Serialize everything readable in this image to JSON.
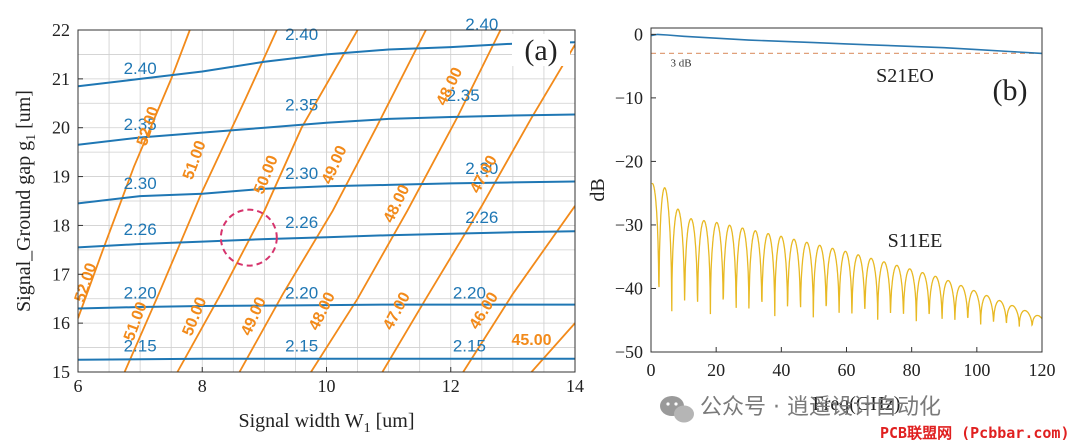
{
  "chart_data": [
    {
      "type": "contour",
      "panel_label": "(a)",
      "xlabel": "Signal width W",
      "xlabel_sub": "1",
      "xlabel_unit": " [um]",
      "ylabel": "Signal_Ground gap g",
      "ylabel_sub": "1",
      "ylabel_unit": " [um]",
      "xlim": [
        6,
        14
      ],
      "ylim": [
        15,
        22
      ],
      "xticks": [
        6,
        8,
        10,
        12,
        14
      ],
      "yticks": [
        15,
        16,
        17,
        18,
        19,
        20,
        21,
        22
      ],
      "grid": true,
      "colors": {
        "blue": "#1f77b4",
        "orange": "#f28a1a",
        "highlight": "#d6336c"
      },
      "blue_contours": [
        {
          "label": "2.40",
          "points": [
            [
              6,
              20.85
            ],
            [
              7,
              21.0
            ],
            [
              8,
              21.15
            ],
            [
              9,
              21.35
            ],
            [
              10,
              21.5
            ],
            [
              11,
              21.6
            ],
            [
              12,
              21.65
            ],
            [
              13,
              21.72
            ],
            [
              14,
              21.75
            ]
          ],
          "label_positions": [
            [
              7.0,
              21.1
            ],
            [
              9.6,
              21.8
            ],
            [
              12.5,
              22.0
            ]
          ]
        },
        {
          "label": "2.35",
          "points": [
            [
              6,
              19.65
            ],
            [
              7,
              19.8
            ],
            [
              8,
              19.9
            ],
            [
              9,
              20.0
            ],
            [
              10,
              20.1
            ],
            [
              11,
              20.18
            ],
            [
              12,
              20.22
            ],
            [
              13,
              20.25
            ],
            [
              14,
              20.27
            ]
          ],
          "label_positions": [
            [
              7.0,
              19.95
            ],
            [
              9.6,
              20.35
            ],
            [
              12.2,
              20.55
            ]
          ]
        },
        {
          "label": "2.30",
          "points": [
            [
              6,
              18.45
            ],
            [
              7,
              18.6
            ],
            [
              8,
              18.65
            ],
            [
              9,
              18.75
            ],
            [
              10,
              18.8
            ],
            [
              11,
              18.83
            ],
            [
              12,
              18.86
            ],
            [
              13,
              18.88
            ],
            [
              14,
              18.9
            ]
          ],
          "label_positions": [
            [
              7.0,
              18.75
            ],
            [
              9.6,
              18.95
            ],
            [
              12.5,
              19.05
            ]
          ]
        },
        {
          "label": "2.26",
          "points": [
            [
              6,
              17.55
            ],
            [
              7,
              17.62
            ],
            [
              8,
              17.67
            ],
            [
              9,
              17.72
            ],
            [
              10,
              17.76
            ],
            [
              11,
              17.8
            ],
            [
              12,
              17.83
            ],
            [
              13,
              17.86
            ],
            [
              14,
              17.88
            ]
          ],
          "label_positions": [
            [
              7.0,
              17.8
            ],
            [
              9.6,
              17.95
            ],
            [
              12.5,
              18.05
            ]
          ]
        },
        {
          "label": "2.20",
          "points": [
            [
              6,
              16.3
            ],
            [
              7,
              16.33
            ],
            [
              8,
              16.35
            ],
            [
              9,
              16.36
            ],
            [
              10,
              16.37
            ],
            [
              11,
              16.38
            ],
            [
              12,
              16.38
            ],
            [
              13,
              16.38
            ],
            [
              14,
              16.38
            ]
          ],
          "label_positions": [
            [
              7.0,
              16.5
            ],
            [
              9.6,
              16.5
            ],
            [
              12.3,
              16.5
            ]
          ]
        },
        {
          "label": "2.15",
          "points": [
            [
              6,
              15.25
            ],
            [
              7,
              15.26
            ],
            [
              8,
              15.27
            ],
            [
              9,
              15.27
            ],
            [
              10,
              15.27
            ],
            [
              11,
              15.27
            ],
            [
              12,
              15.27
            ],
            [
              13,
              15.27
            ],
            [
              14,
              15.27
            ]
          ],
          "label_positions": [
            [
              7.0,
              15.42
            ],
            [
              9.6,
              15.42
            ],
            [
              12.3,
              15.42
            ]
          ]
        }
      ],
      "orange_contours": [
        {
          "label": "52.00",
          "points": [
            [
              6.0,
              16.1
            ],
            [
              6.4,
              17.5
            ],
            [
              6.9,
              19.2
            ],
            [
              7.5,
              21.0
            ],
            [
              7.8,
              22.0
            ]
          ],
          "label_position": [
            6.2,
            16.8
          ],
          "angle": -72
        },
        {
          "label": "52.00",
          "points": [
            [
              6.0,
              16.1
            ],
            [
              6.4,
              17.5
            ],
            [
              6.9,
              19.2
            ],
            [
              7.5,
              21.0
            ],
            [
              7.8,
              22.0
            ]
          ],
          "label_position": [
            7.2,
            20.0
          ],
          "angle": -72
        },
        {
          "label": "51.00",
          "points": [
            [
              6.75,
              15.0
            ],
            [
              7.3,
              16.6
            ],
            [
              8.0,
              18.7
            ],
            [
              8.7,
              20.6
            ],
            [
              9.2,
              22.0
            ]
          ],
          "label_position": [
            7.0,
            16.0
          ],
          "angle": -70
        },
        {
          "label": "51.00",
          "points": [
            [
              6.75,
              15.0
            ],
            [
              7.3,
              16.6
            ],
            [
              8.0,
              18.7
            ],
            [
              8.7,
              20.6
            ],
            [
              9.2,
              22.0
            ]
          ],
          "label_position": [
            7.95,
            19.3
          ],
          "angle": -70
        },
        {
          "label": "50.00",
          "points": [
            [
              7.6,
              15.0
            ],
            [
              8.3,
              16.6
            ],
            [
              9.0,
              18.3
            ],
            [
              9.6,
              20.0
            ],
            [
              10.5,
              22.0
            ]
          ],
          "label_position": [
            7.95,
            16.1
          ],
          "angle": -68
        },
        {
          "label": "50.00",
          "points": [
            [
              7.6,
              15.0
            ],
            [
              8.3,
              16.6
            ],
            [
              9.0,
              18.3
            ],
            [
              9.6,
              20.0
            ],
            [
              10.5,
              22.0
            ]
          ],
          "label_position": [
            9.1,
            19.0
          ],
          "angle": -68
        },
        {
          "label": "49.00",
          "points": [
            [
              8.6,
              15.0
            ],
            [
              9.3,
              16.6
            ],
            [
              10.1,
              18.3
            ],
            [
              10.8,
              20.0
            ],
            [
              11.6,
              22.0
            ]
          ],
          "label_position": [
            8.9,
            16.1
          ],
          "angle": -66
        },
        {
          "label": "49.00",
          "points": [
            [
              8.6,
              15.0
            ],
            [
              9.3,
              16.6
            ],
            [
              10.1,
              18.3
            ],
            [
              10.8,
              20.0
            ],
            [
              11.6,
              22.0
            ]
          ],
          "label_position": [
            10.2,
            19.2
          ],
          "angle": -66
        },
        {
          "label": "48.00",
          "points": [
            [
              9.75,
              15.0
            ],
            [
              10.5,
              16.5
            ],
            [
              11.3,
              18.3
            ],
            [
              12.1,
              20.2
            ],
            [
              12.8,
              22.0
            ]
          ],
          "label_position": [
            10.0,
            16.2
          ],
          "angle": -64
        },
        {
          "label": "48.00",
          "points": [
            [
              9.75,
              15.0
            ],
            [
              10.5,
              16.5
            ],
            [
              11.3,
              18.3
            ],
            [
              12.1,
              20.2
            ],
            [
              12.8,
              22.0
            ]
          ],
          "label_position": [
            11.2,
            18.4
          ],
          "angle": -64
        },
        {
          "label": "48.00",
          "points": [
            [
              9.75,
              15.0
            ],
            [
              10.5,
              16.5
            ],
            [
              11.3,
              18.3
            ],
            [
              12.1,
              20.2
            ],
            [
              12.8,
              22.0
            ]
          ],
          "label_position": [
            12.05,
            20.8
          ],
          "angle": -64
        },
        {
          "label": "47.00",
          "points": [
            [
              10.9,
              15.0
            ],
            [
              11.6,
              16.5
            ],
            [
              12.5,
              18.4
            ],
            [
              13.3,
              20.2
            ],
            [
              14.0,
              21.7
            ]
          ],
          "label_position": [
            11.2,
            16.2
          ],
          "angle": -62
        },
        {
          "label": "47.00",
          "points": [
            [
              10.9,
              15.0
            ],
            [
              11.6,
              16.5
            ],
            [
              12.5,
              18.4
            ],
            [
              13.3,
              20.2
            ],
            [
              14.0,
              21.7
            ]
          ],
          "label_position": [
            12.6,
            19.0
          ],
          "angle": -62
        },
        {
          "label": "46.00",
          "points": [
            [
              12.2,
              15.0
            ],
            [
              13.0,
              16.6
            ],
            [
              14.0,
              18.4
            ]
          ],
          "label_position": [
            12.6,
            16.2
          ],
          "angle": -58
        },
        {
          "label": "45.00",
          "points": [
            [
              13.3,
              15.0
            ],
            [
              14.0,
              16.0
            ]
          ],
          "label_position": [
            13.3,
            15.55
          ],
          "angle": 0
        }
      ],
      "highlight_circle": {
        "center": [
          8.75,
          17.75
        ],
        "radius_x": 0.45
      }
    },
    {
      "type": "line",
      "panel_label": "(b)",
      "xlabel": "Freq(GHz)",
      "ylabel": "dB",
      "xlim": [
        0,
        120
      ],
      "ylim": [
        -50,
        1
      ],
      "xticks": [
        0,
        20,
        40,
        60,
        80,
        100,
        120
      ],
      "yticks": [
        0,
        -10,
        -20,
        -30,
        -40,
        -50
      ],
      "grid": false,
      "reference_line": {
        "label": "3 dB",
        "y": -3,
        "color": "#e0a07a"
      },
      "series": [
        {
          "name": "S21EO",
          "color": "#2a78b0",
          "x": [
            0,
            2,
            5,
            10,
            20,
            30,
            40,
            50,
            60,
            70,
            80,
            90,
            100,
            110,
            120
          ],
          "y": [
            -0.2,
            0.0,
            -0.1,
            -0.3,
            -0.6,
            -0.9,
            -1.1,
            -1.3,
            -1.5,
            -1.7,
            -1.9,
            -2.1,
            -2.4,
            -2.7,
            -3.0
          ]
        },
        {
          "name": "S11EE",
          "color": "#e8b923",
          "envelope_x": [
            1,
            3,
            7,
            12,
            20,
            30,
            40,
            50,
            60,
            70,
            80,
            90,
            100,
            110,
            120
          ],
          "envelope_y": [
            -23.5,
            -22.8,
            -27,
            -29,
            -29.6,
            -30.7,
            -31.8,
            -33,
            -34.2,
            -35.6,
            -37,
            -38.5,
            -40.5,
            -42.5,
            -44.5
          ],
          "dip_y": -46.5,
          "ripple_period_ghz": 3.95,
          "first_null_ghz": 4.4
        }
      ],
      "annotations": [
        "S21EO",
        "S11EE"
      ]
    }
  ],
  "watermark": {
    "text1": "公众号 · 逍遥设计自动化",
    "text2": "PCB联盟网 (Pcbbar.com)"
  }
}
